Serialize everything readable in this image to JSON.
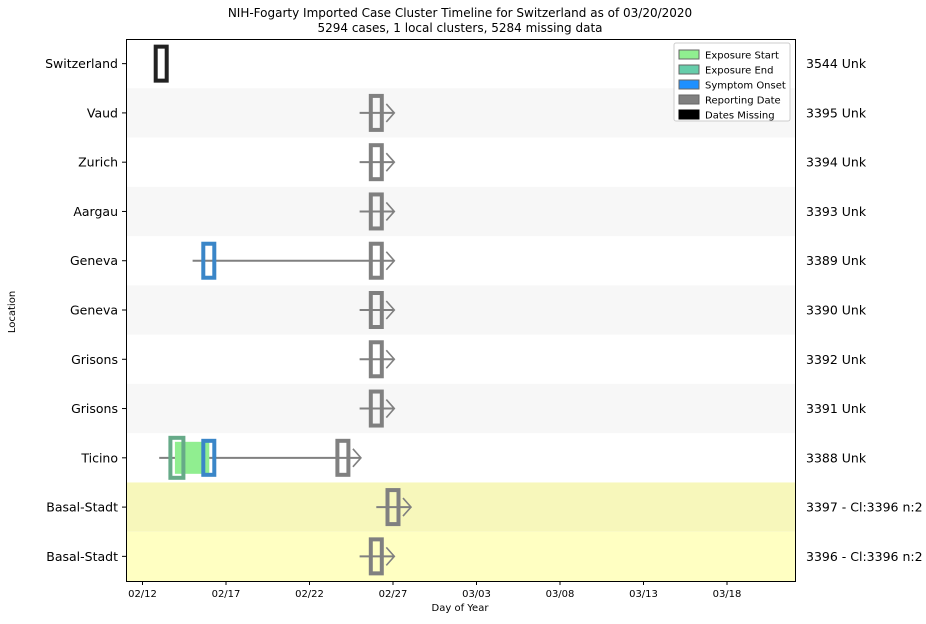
{
  "chart_data": {
    "type": "timeline",
    "title": "NIH-Fogarty Imported Case Cluster Timeline for Switzerland as of 03/20/2020",
    "subtitle": "5294 cases, 1 local clusters, 5284 missing data",
    "xlabel": "Day of Year",
    "ylabel": "Location",
    "x_ticks": [
      "02/12",
      "02/17",
      "02/22",
      "02/27",
      "03/03",
      "03/08",
      "03/13",
      "03/18"
    ],
    "x_range": [
      "02/12",
      "03/23"
    ],
    "legend": {
      "position": "top-right",
      "entries": [
        {
          "label": "Exposure Start",
          "color": "#90ee90"
        },
        {
          "label": "Exposure End",
          "color": "#66cdaa"
        },
        {
          "label": "Symptom Onset",
          "color": "#1e90ff"
        },
        {
          "label": "Reporting Date",
          "color": "#808080"
        },
        {
          "label": "Dates Missing",
          "color": "#000000"
        }
      ]
    },
    "rows": [
      {
        "location": "Switzerland",
        "right_label": "3544 Unk",
        "dates_missing": "02/13",
        "band": "white"
      },
      {
        "location": "Vaud",
        "right_label": "3395 Unk",
        "report": "02/26",
        "line_start": "02/25",
        "band": "grey"
      },
      {
        "location": "Zurich",
        "right_label": "3394 Unk",
        "report": "02/26",
        "line_start": "02/25",
        "band": "white"
      },
      {
        "location": "Aargau",
        "right_label": "3393 Unk",
        "report": "02/26",
        "line_start": "02/25",
        "band": "grey"
      },
      {
        "location": "Geneva",
        "right_label": "3389 Unk",
        "symptom": "02/16",
        "report": "02/26",
        "line_start": "02/15",
        "band": "white"
      },
      {
        "location": "Geneva",
        "right_label": "3390 Unk",
        "report": "02/26",
        "line_start": "02/25",
        "band": "grey"
      },
      {
        "location": "Grisons",
        "right_label": "3392 Unk",
        "report": "02/26",
        "line_start": "02/25",
        "band": "white"
      },
      {
        "location": "Grisons",
        "right_label": "3391 Unk",
        "report": "02/26",
        "line_start": "02/25",
        "band": "grey"
      },
      {
        "location": "Ticino",
        "right_label": "3388 Unk",
        "exposure_start": "02/14",
        "exposure_end": "02/14",
        "symptom": "02/16",
        "report": "02/24",
        "line_start": "02/13",
        "band": "white"
      },
      {
        "location": "Basal-Stadt",
        "right_label": "3397 - Cl:3396 n:2",
        "report": "02/27",
        "line_start": "02/26",
        "band": "cluster1"
      },
      {
        "location": "Basal-Stadt",
        "right_label": "3396 - Cl:3396 n:2",
        "report": "02/26",
        "line_start": "02/25",
        "band": "cluster2"
      }
    ],
    "colors": {
      "alt_band": "#f7f7f7",
      "cluster1_band": "#f7f7bb",
      "cluster2_band": "#ffffc2",
      "exposure_fill": "#90ee90",
      "exposure_end_edge": "#66aa88",
      "symptom_edge": "#3a86c8",
      "report_edge": "#808080",
      "missing_edge": "#222222",
      "timeline_line": "#808080"
    }
  }
}
